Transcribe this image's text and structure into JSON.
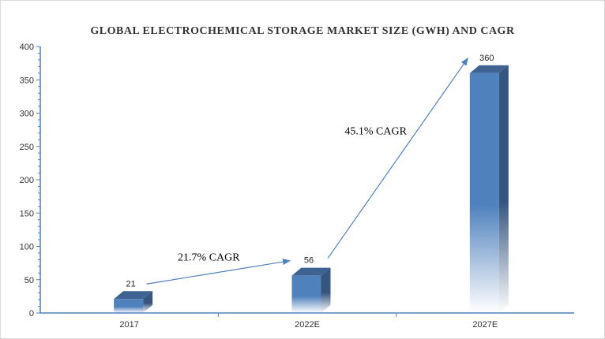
{
  "chart_data": {
    "type": "bar",
    "title": "GLOBAL ELECTROCHEMICAL STORAGE MARKET SIZE (GWH) AND CAGR",
    "categories": [
      "2017",
      "2022E",
      "2027E"
    ],
    "values": [
      21,
      56,
      360
    ],
    "data_labels": [
      "21",
      "56",
      "360"
    ],
    "ylim": [
      0,
      400
    ],
    "yticks": [
      "0",
      "50",
      "100",
      "150",
      "200",
      "250",
      "300",
      "350",
      "400"
    ],
    "xlabel": "",
    "ylabel": "",
    "grid": false,
    "style": "3d-column",
    "bar_color": "#4f81bd",
    "annotations": [
      {
        "text": "21.7% CAGR",
        "from": "2017",
        "to": "2022E"
      },
      {
        "text": "45.1% CAGR",
        "from": "2022E",
        "to": "2027E"
      }
    ]
  }
}
